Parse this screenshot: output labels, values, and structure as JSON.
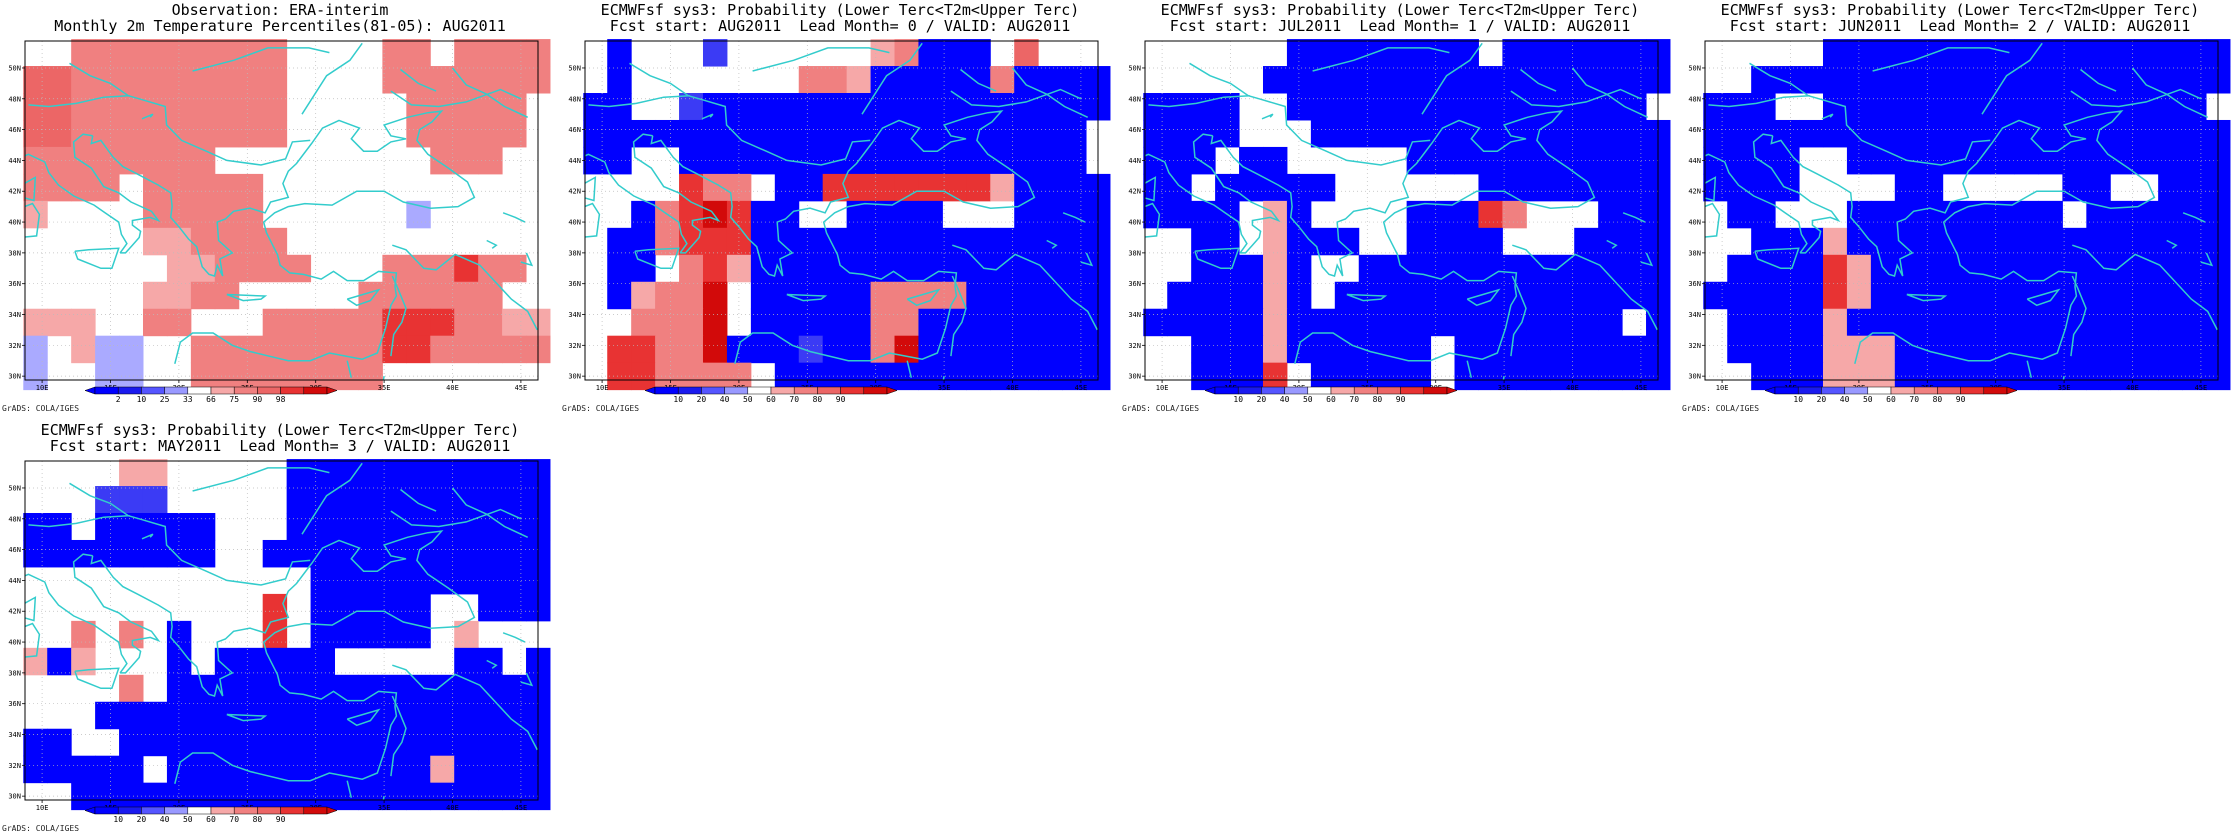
{
  "cb_obs": {
    "labels": [
      "2",
      "10",
      "25",
      "33",
      "66",
      "75",
      "90",
      "98"
    ]
  },
  "cb_prob": {
    "labels": [
      "10",
      "20",
      "40",
      "50",
      "60",
      "70",
      "80",
      "90"
    ]
  },
  "lat_labels": [
    "30N",
    "32N",
    "34N",
    "36N",
    "38N",
    "40N",
    "42N",
    "44N",
    "46N",
    "48N",
    "50N"
  ],
  "lon_labels": [
    "10E",
    "15E",
    "20E",
    "25E",
    "30E",
    "35E",
    "40E",
    "45E"
  ],
  "palette": {
    "B": "#0000ff",
    "b": "#3b3bf5",
    "L": "#aaaaff",
    "w": "#ffffff",
    "p": "#f6a8a8",
    "q": "#f08080",
    "r": "#ec6666",
    "R": "#e83333",
    "D": "#d20a0a"
  },
  "coast_color": "#33cccc",
  "panels": [
    {
      "title_line1": "Observation: ERA-interim",
      "title_line2": "Monthly 2m Temperature Percentiles(81-05): AUG2011",
      "credit": "GrADS: COLA/IGES",
      "colorbar": "obs",
      "grid": [
        "wwqqqqqqqqqwwwwqqwqqqq",
        "rrqqqqqqqqqwwwwqqqqqqq",
        "rrqqqqqqqqqwwwwwqqqqqw",
        "rrqqqqqqqqqwwwwwqqqqqw",
        "qqqqqqqqwwwwwwwwwqqqww",
        "qqqqwqqqqqwwwwwwwwwwww",
        "pwwwwqqqqqwwwwwwLwwwww",
        "wwwwwppqqqqwwwwwwwwwww",
        "wwwwwwppqqqqwwwqqqRqqw",
        "wwwwwppqqwwwwwqqqqqqww",
        "pppwwqqwwwqqqqqRRRqqpp",
        "LwpLLwwqqqqqqqqRRqqqqq",
        "LwwLLwwqqqqqqqqwwwwwww"
      ]
    },
    {
      "title_line1": "ECMWFsf sys3: Probability (Lower Terc<T2m<Upper Terc)",
      "title_line2": "Fcst start: AUG2011  Lead Month= 0 / VALID: AUG2011",
      "credit": "GrADS: COLA/IGES",
      "colorbar": "prob",
      "grid": [
        "wBwwwbwwwwwwpqBBBwrwww",
        "wBwwwwwwwqqpBBBBBqBBBB",
        "BBwwbBBBBBBBBBBBBBBBBB",
        "BBBBBBBBBBBBBBBBBBBBBw",
        "BBwwBBBBBBBBBBBBBBBBBw",
        "wwwwRqqwBBRRRRRRRpBBBB",
        "wwBqRDRBBwwBBBBwwwBBBB",
        "wBBqRRRBBBBBBBBBBBBBBB",
        "wBBwqRpBBBBBBBBBBBBBBB",
        "wBpqqDwBBBBBqqqqBBBBBB",
        "wwqqqDwBBBBBqqBBBBBBBB",
        "wRRqqDBBBbBBqDBBBBBBBB",
        "wRRqqqqwBBBBBBBBBBBBBB"
      ]
    },
    {
      "title_line1": "ECMWFsf sys3: Probability (Lower Terc<T2m<Upper Terc)",
      "title_line2": "Fcst start: JUL2011  Lead Month= 1 / VALID: AUG2011",
      "credit": "GrADS: COLA/IGES",
      "colorbar": "prob",
      "grid": [
        "wwwwwwBBBBBBBBwBBBBBBB",
        "wwwwwBBBBBBBBBBBBBBBBB",
        "BBBBwwBBBBBBBBBBBBBBBw",
        "BBBBwwwBBBBBBBBBBBBBBB",
        "BBBwBBwwwwwBBBBBBBBBBB",
        "BBwBBBBBwwwwwwBBBBBBBB",
        "BBBBwpBwwwwBBBRqwwwBBB",
        "wwBBwpBBBwwBBBBwwwBBBB",
        "wwBBBpBwwBBBBBBBBBBBBB",
        "wBBBBpBwBBBBBBBBBBBBBB",
        "BBBBBpBBBBBBBBBBBBBBwB",
        "wwBBBpBBBBBBwBBBBBBBBB",
        "wwBBBRwBBBBBwBBBBBBBBB"
      ]
    },
    {
      "title_line1": "ECMWFsf sys3: Probability (Lower Terc<T2m<Upper Terc)",
      "title_line2": "Fcst start: JUN2011  Lead Month= 2 / VALID: AUG2011",
      "credit": "GrADS: COLA/IGES",
      "colorbar": "prob",
      "grid": [
        "wwwwwBBBBBBBBBBBBBBBBB",
        "wwBBBBBBBBBBBBBBBBBBBB",
        "BBBwwBBBBBBBBBBBBBBBBw",
        "BBBBBBBBBBBBBBBBBBBBBB",
        "BBBBwwBBBBBBBBBBBBBBBB",
        "BBBBwwwwBBwwwwwBBwwBBB",
        "wBBwwwBBBBBBBBBwBBBBBB",
        "wwBBBpBBBBBBBBBBBBBBBB",
        "wBBBBRpBBBBBBBBBBBBBBB",
        "BBBBBRpBBBBBBBBBBBBBBB",
        "wBBBBpBBBBBBBBBBBBBBBB",
        "wBBBBpppBBBBBBBBBBBBBB",
        "wwBBBpppBBBBBBBBBBBBBB"
      ]
    },
    {
      "title_line1": "ECMWFsf sys3: Probability (Lower Terc<T2m<Upper Terc)",
      "title_line2": "Fcst start: MAY2011  Lead Month= 3 / VALID: AUG2011",
      "credit": "GrADS: COLA/IGES",
      "colorbar": "prob",
      "grid": [
        "wwwwppwwwwwBBBBBBBBBBB",
        "wwwbbbwwwwwBBBBBBBBBBB",
        "BBwBBBBBwwwBBBBBBBBBBB",
        "BBBBBBBBwwBBBBBBBBBBBB",
        "wwwwwwwwwwwwBBBBBBBBBB",
        "wwwwwwwwwwRwBBBBBwwBBB",
        "wwqwqwBwwwRwBBBBBwpwww",
        "pBpwwwBwBBBBBwwwwwBBwB",
        "wwwwqwBBBBBBBBBBBBBBBB",
        "wwwBBBBBBBBBBBBBBBBBBB",
        "BBwwBBBBBBBBBBBBBBBBBB",
        "BBBBBwBBBBBBBBBBBpBBBB",
        "wwBBBBBBBBBBBBBBBBBBBB"
      ]
    }
  ]
}
